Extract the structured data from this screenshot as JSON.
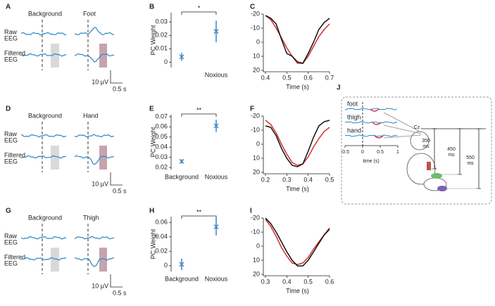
{
  "chart_data": [
    {
      "type": "errorbar",
      "label": "B",
      "categories": [
        null,
        "Noxious"
      ],
      "values": [
        0.004,
        0.023
      ],
      "errors": [
        0.003,
        0.008
      ],
      "ylim": [
        -0.004,
        0.037
      ],
      "yticks": [
        0,
        0.01,
        0.02,
        0.03
      ],
      "ylabel": "PC Weight",
      "annotation": "*",
      "color": "#3a84c4"
    },
    {
      "type": "line",
      "label": "C",
      "x": [
        0.4,
        0.425,
        0.45,
        0.475,
        0.5,
        0.525,
        0.55,
        0.575,
        0.6,
        0.625,
        0.65,
        0.675,
        0.7
      ],
      "series": [
        {
          "color": "#d62f2f",
          "values": [
            -19,
            -16,
            -10,
            -3,
            4,
            10,
            15,
            15,
            10,
            3,
            -4,
            -9,
            -13
          ]
        },
        {
          "color": "#111111",
          "values": [
            -19,
            -17,
            -13,
            -2,
            8,
            10,
            14,
            15,
            8,
            0,
            -9,
            -14,
            -17
          ]
        }
      ],
      "xlim": [
        0.4,
        0.7
      ],
      "xticks": [
        0.4,
        0.5,
        0.6,
        0.7
      ],
      "ylim": [
        20,
        -20
      ],
      "yticks": [
        -20,
        -10,
        0,
        10,
        20
      ],
      "xlabel": "Time (s)"
    },
    {
      "type": "errorbar",
      "label": "E",
      "categories": [
        "Background",
        "Noxious"
      ],
      "values": [
        0.026,
        0.061
      ],
      "errors": [
        0.002,
        0.006
      ],
      "ylim": [
        0.018,
        0.072
      ],
      "yticks": [
        0.02,
        0.03,
        0.04,
        0.05,
        0.06,
        0.07
      ],
      "ylabel": "PC Weight",
      "annotation": "**",
      "color": "#3a84c4"
    },
    {
      "type": "line",
      "label": "F",
      "x": [
        0.2,
        0.225,
        0.25,
        0.275,
        0.3,
        0.325,
        0.35,
        0.375,
        0.4,
        0.425,
        0.45,
        0.475,
        0.5
      ],
      "series": [
        {
          "color": "#d62f2f",
          "values": [
            -17,
            -14,
            -8,
            0,
            7,
            13,
            15,
            14,
            9,
            2,
            -4,
            -9,
            -12
          ]
        },
        {
          "color": "#111111",
          "values": [
            -13,
            -12,
            -6,
            3,
            10,
            15,
            16,
            14,
            5,
            -5,
            -13,
            -16,
            -17
          ]
        }
      ],
      "xlim": [
        0.2,
        0.5
      ],
      "xticks": [
        0.2,
        0.3,
        0.4,
        0.5
      ],
      "ylim": [
        20,
        -20
      ],
      "yticks": [
        -20,
        -10,
        0,
        10,
        20
      ],
      "xlabel": "Time (s)"
    },
    {
      "type": "errorbar",
      "label": "H",
      "categories": [
        "Background",
        "Noxious"
      ],
      "values": [
        0.002,
        0.054
      ],
      "errors": [
        0.008,
        0.012
      ],
      "ylim": [
        -0.008,
        0.068
      ],
      "yticks": [
        0,
        0.02,
        0.04,
        0.06
      ],
      "ylabel": "PC Weight",
      "annotation": "**",
      "color": "#3a84c4"
    },
    {
      "type": "line",
      "label": "I",
      "x": [
        0.3,
        0.325,
        0.35,
        0.375,
        0.4,
        0.425,
        0.45,
        0.475,
        0.5,
        0.525,
        0.55,
        0.575,
        0.6
      ],
      "series": [
        {
          "color": "#d62f2f",
          "values": [
            -19,
            -14,
            -7,
            1,
            7,
            12,
            13,
            12,
            8,
            2,
            -3,
            -8,
            -13
          ]
        },
        {
          "color": "#111111",
          "values": [
            -20,
            -16,
            -10,
            -3,
            4,
            10,
            14,
            14,
            10,
            4,
            -2,
            -8,
            -12
          ]
        }
      ],
      "xlim": [
        0.3,
        0.6
      ],
      "xticks": [
        0.3,
        0.4,
        0.5,
        0.6
      ],
      "ylim": [
        20,
        -20
      ],
      "yticks": [
        -20,
        -10,
        0,
        10,
        20
      ],
      "xlabel": "Time (s)"
    }
  ],
  "traces": [
    {
      "label": "A",
      "conditions": [
        "Background",
        "Foot"
      ],
      "rows": [
        [
          "Raw",
          "EEG"
        ],
        [
          "Filtered",
          "EEG"
        ]
      ],
      "scale": [
        "10 µV",
        "0.5 s"
      ]
    },
    {
      "label": "D",
      "conditions": [
        "Background",
        "Hand"
      ],
      "rows": [
        [
          "Raw",
          "EEG"
        ],
        [
          "Filtered",
          "EEG"
        ]
      ],
      "scale": [
        "10 µV",
        "0.5 s"
      ]
    },
    {
      "label": "G",
      "conditions": [
        "Background",
        "Thigh"
      ],
      "rows": [
        [
          "Raw",
          "EEG"
        ],
        [
          "Filtered",
          "EEG"
        ]
      ],
      "scale": [
        "10 µV",
        "0.5 s"
      ]
    }
  ],
  "diagram": {
    "label": "J",
    "traces": [
      "foot",
      "thigh",
      "hand"
    ],
    "xticks": [
      -0.5,
      0,
      0.5,
      1
    ],
    "xlabel": "time (s)",
    "electrode": "Cz",
    "latencies": [
      [
        "350",
        "ms"
      ],
      [
        "450",
        "ms"
      ],
      [
        "550",
        "ms"
      ]
    ]
  }
}
